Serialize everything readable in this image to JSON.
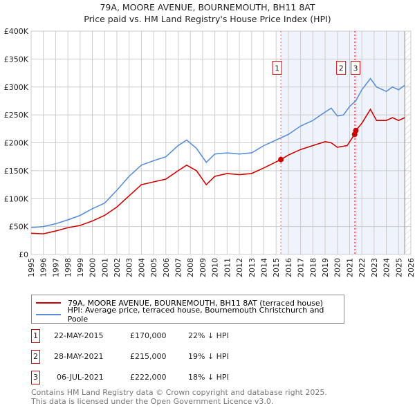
{
  "chart_data": {
    "type": "line",
    "title": "79A, MOORE AVENUE, BOURNEMOUTH, BH11 8AT",
    "subtitle": "Price paid vs. HM Land Registry's House Price Index (HPI)",
    "xlim": [
      1995,
      2026
    ],
    "ylim": [
      0,
      400000
    ],
    "x_ticks": [
      "1995",
      "1996",
      "1997",
      "1998",
      "1999",
      "2000",
      "2001",
      "2002",
      "2003",
      "2004",
      "2005",
      "2006",
      "2007",
      "2008",
      "2009",
      "2010",
      "2011",
      "2012",
      "2013",
      "2014",
      "2015",
      "2016",
      "2017",
      "2018",
      "2019",
      "2020",
      "2021",
      "2022",
      "2023",
      "2024",
      "2025",
      "2026"
    ],
    "y_ticks": [
      {
        "v": 0,
        "label": "£0"
      },
      {
        "v": 50000,
        "label": "£50K"
      },
      {
        "v": 100000,
        "label": "£100K"
      },
      {
        "v": 150000,
        "label": "£150K"
      },
      {
        "v": 200000,
        "label": "£200K"
      },
      {
        "v": 250000,
        "label": "£250K"
      },
      {
        "v": 300000,
        "label": "£300K"
      },
      {
        "v": 350000,
        "label": "£350K"
      },
      {
        "v": 400000,
        "label": "£400K"
      }
    ],
    "grid": true,
    "shaded_range": [
      2015.39,
      2025.5
    ],
    "hatched_from": 2025.5,
    "series": [
      {
        "name": "79A, MOORE AVENUE, BOURNEMOUTH, BH11 8AT (terraced house)",
        "color": "#cc0000",
        "x": [
          1995,
          1996,
          1997,
          1998,
          1999,
          2000,
          2001,
          2002,
          2003,
          2004,
          2005,
          2006,
          2007,
          2007.7,
          2008.5,
          2009.3,
          2010,
          2011,
          2012,
          2013,
          2014,
          2015.39,
          2016,
          2017,
          2018,
          2019,
          2019.5,
          2020,
          2020.8,
          2021.4,
          2021.51,
          2022,
          2022.7,
          2023.2,
          2024,
          2024.5,
          2025,
          2025.5
        ],
        "y": [
          38000,
          37000,
          42000,
          48000,
          52000,
          60000,
          70000,
          85000,
          105000,
          125000,
          130000,
          135000,
          150000,
          160000,
          150000,
          125000,
          140000,
          145000,
          143000,
          145000,
          155000,
          170000,
          178000,
          188000,
          195000,
          202000,
          200000,
          192000,
          195000,
          215000,
          222000,
          235000,
          260000,
          240000,
          240000,
          245000,
          240000,
          245000
        ]
      },
      {
        "name": "HPI: Average price, terraced house, Bournemouth Christchurch and Poole",
        "color": "#5b8fd4",
        "x": [
          1995,
          1996,
          1997,
          1998,
          1999,
          2000,
          2001,
          2002,
          2003,
          2004,
          2005,
          2006,
          2007,
          2007.7,
          2008.5,
          2009.3,
          2010,
          2011,
          2012,
          2013,
          2014,
          2015,
          2016,
          2017,
          2018,
          2019,
          2019.5,
          2020,
          2020.5,
          2021,
          2021.5,
          2022,
          2022.7,
          2023.2,
          2024,
          2024.5,
          2025,
          2025.5
        ],
        "y": [
          48000,
          50000,
          55000,
          62000,
          70000,
          82000,
          92000,
          115000,
          140000,
          160000,
          168000,
          175000,
          195000,
          205000,
          190000,
          165000,
          180000,
          182000,
          180000,
          182000,
          195000,
          205000,
          215000,
          230000,
          240000,
          255000,
          262000,
          248000,
          250000,
          265000,
          275000,
          295000,
          315000,
          300000,
          292000,
          300000,
          295000,
          303000
        ]
      }
    ],
    "sales": [
      {
        "id": "1",
        "x": 2015.39,
        "price": 170000,
        "date": "22-MAY-2015",
        "price_label": "£170,000",
        "hpi": "22% ↓ HPI"
      },
      {
        "id": "2",
        "x": 2021.41,
        "price": 215000,
        "date": "28-MAY-2021",
        "price_label": "£215,000",
        "hpi": "19% ↓ HPI"
      },
      {
        "id": "3",
        "x": 2021.51,
        "price": 222000,
        "date": "06-JUL-2021",
        "price_label": "£222,000",
        "hpi": "18% ↓ HPI"
      }
    ]
  },
  "footer": [
    "Contains HM Land Registry data © Crown copyright and database right 2025.",
    "This data is licensed under the Open Government Licence v3.0."
  ]
}
